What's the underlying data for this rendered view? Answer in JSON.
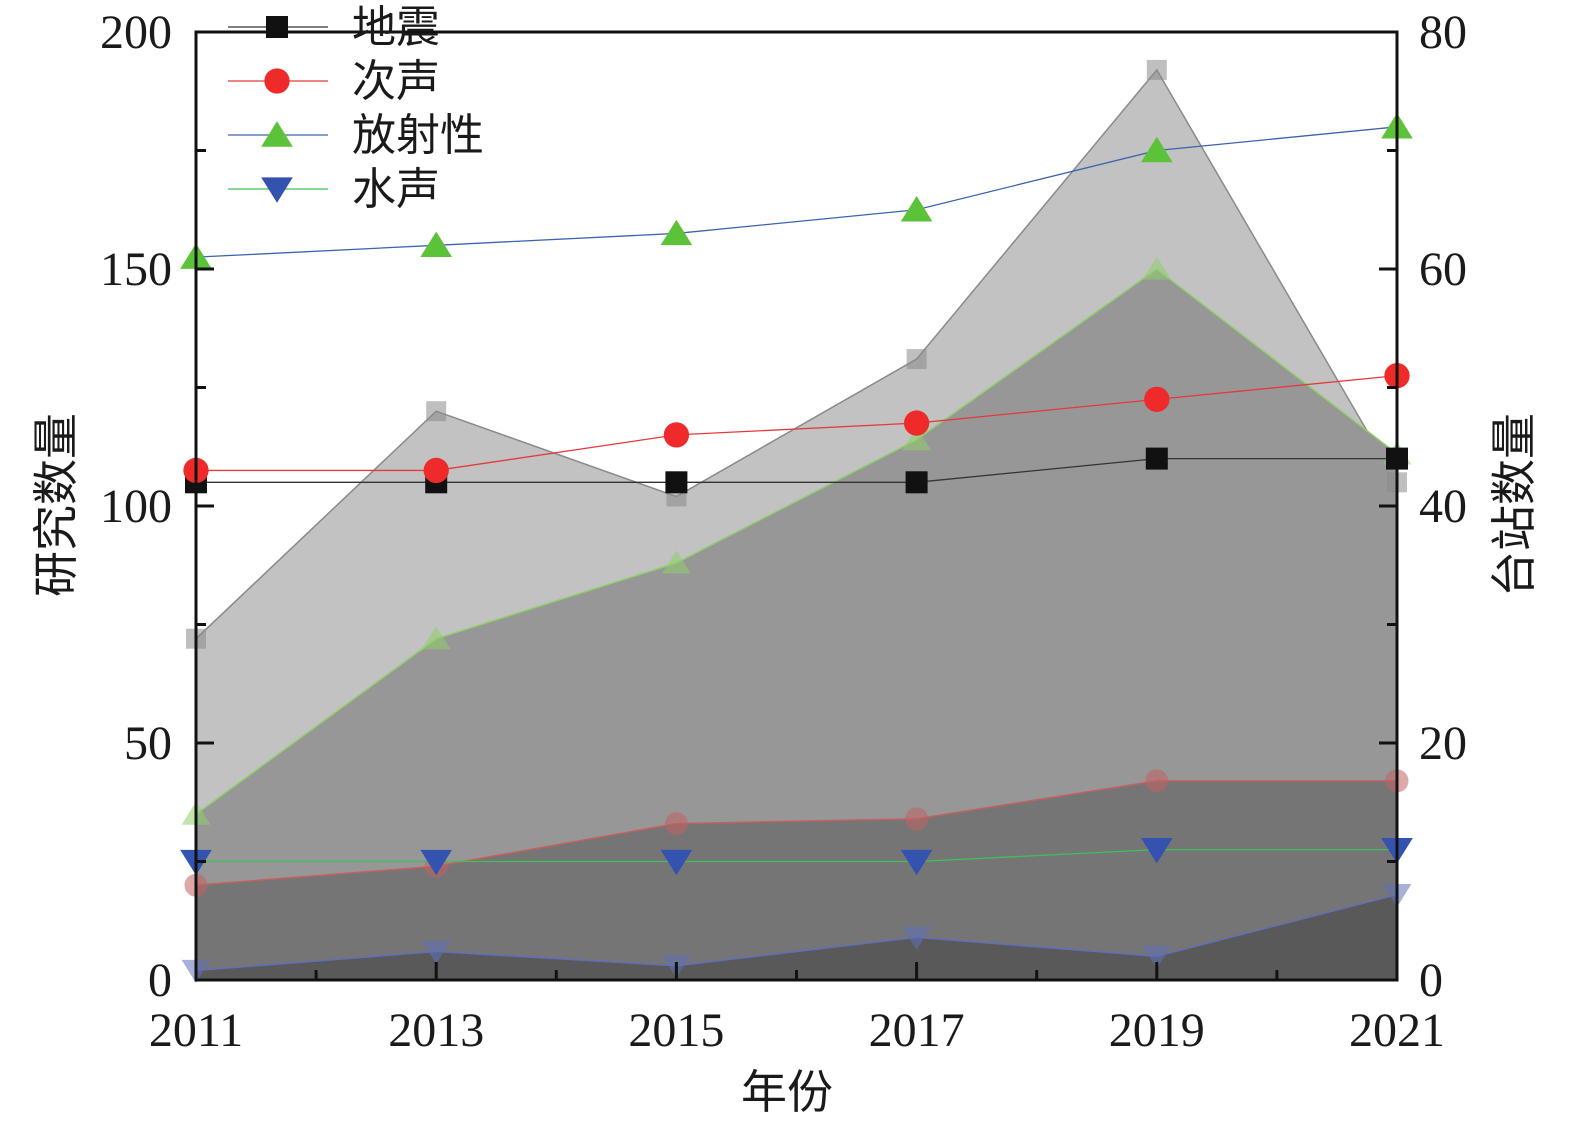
{
  "chart_data": {
    "type": "line",
    "title": "",
    "xlabel": "年份",
    "ylabel_left": "研究数量",
    "ylabel_right": "台站数量",
    "x": [
      2011,
      2013,
      2015,
      2017,
      2019,
      2021
    ],
    "x_ticks": [
      "2011",
      "2013",
      "2015",
      "2017",
      "2019",
      "2021"
    ],
    "xlim": [
      2011,
      2021
    ],
    "ylim_left": [
      0,
      200
    ],
    "ylim_right": [
      0,
      80
    ],
    "y_ticks_left": [
      "0",
      "50",
      "100",
      "150",
      "200"
    ],
    "y_ticks_right": [
      "0",
      "20",
      "40",
      "60",
      "80"
    ],
    "legend_position": "top-left",
    "grid": false,
    "series": [
      {
        "name": "地震",
        "axis": "right",
        "marker": "square",
        "line_color": "#333333",
        "marker_color": "#111111",
        "values": [
          42,
          42,
          42,
          42,
          44,
          44
        ]
      },
      {
        "name": "次声",
        "axis": "right",
        "marker": "circle",
        "line_color": "#e23b3b",
        "marker_color": "#ee2a2a",
        "values": [
          43,
          43,
          46,
          47,
          49,
          51
        ]
      },
      {
        "name": "放射性",
        "axis": "right",
        "marker": "triangle-up",
        "line_color": "#3b63b0",
        "marker_color": "#5cc23a",
        "values": [
          61,
          62,
          63,
          65,
          70,
          72
        ]
      },
      {
        "name": "水声",
        "axis": "right",
        "marker": "triangle-down",
        "line_color": "#3fbf5a",
        "marker_color": "#3453b0",
        "values": [
          10,
          10,
          10,
          10,
          11,
          11
        ]
      }
    ],
    "areas": [
      {
        "axis": "left",
        "fill": "#c2c2c2",
        "edge": "#8a8a8a",
        "marker": "square",
        "values": [
          72,
          120,
          102,
          131,
          192,
          105
        ]
      },
      {
        "axis": "left",
        "fill": "#979797",
        "edge": "#8fd06a",
        "marker": "triangle-up",
        "values": [
          35,
          72,
          88,
          114,
          150,
          111
        ]
      },
      {
        "axis": "left",
        "fill": "#757575",
        "edge": "#c36060",
        "marker": "circle",
        "values": [
          20,
          24,
          33,
          34,
          42,
          42
        ]
      },
      {
        "axis": "left",
        "fill": "#595959",
        "edge": "#5f70b8",
        "marker": "triangle-down",
        "values": [
          2,
          6,
          3,
          9,
          5,
          18
        ]
      }
    ]
  }
}
